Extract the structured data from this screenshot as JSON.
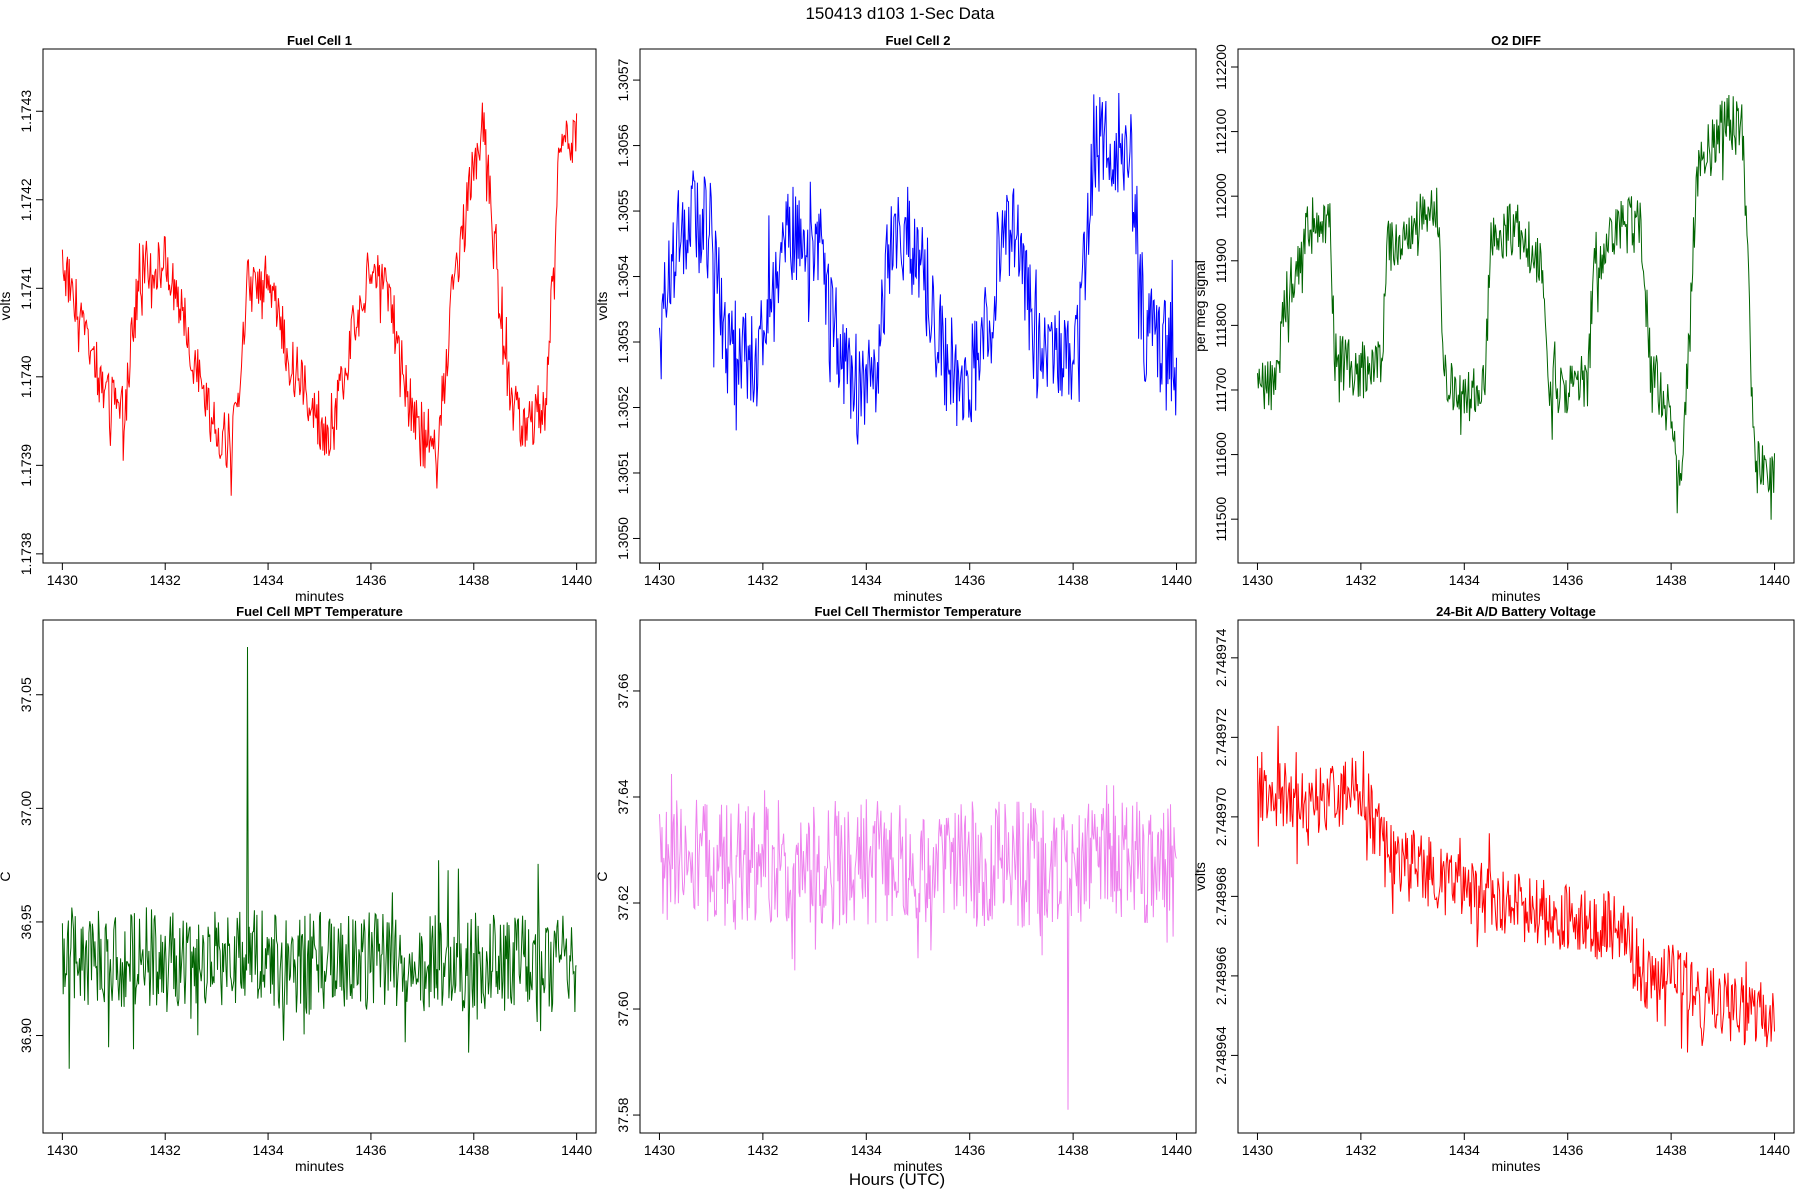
{
  "page": {
    "main_title": "150413   d103   1-Sec Data",
    "bottom_label": "Hours (UTC)"
  },
  "chart_data": [
    {
      "type": "line",
      "title": "Fuel Cell 1",
      "xlabel": "minutes",
      "ylabel": "volts",
      "color": "#ff0000",
      "xlim": [
        1430,
        1440
      ],
      "ylim": [
        1.17381,
        1.17435
      ],
      "x_ticks": [
        "1430",
        "1432",
        "1434",
        "1436",
        "1438",
        "1440"
      ],
      "y_ticks": [
        "1.1738",
        "1.1739",
        "1.1740",
        "1.1741",
        "1.1742",
        "1.1743"
      ],
      "x": [
        1430,
        1430.5,
        1430.8,
        1431.2,
        1431.5,
        1432.0,
        1432.3,
        1432.7,
        1433.0,
        1433.3,
        1433.6,
        1434.0,
        1434.4,
        1434.8,
        1435.2,
        1435.6,
        1436.0,
        1436.3,
        1436.7,
        1437.0,
        1437.3,
        1437.6,
        1437.9,
        1438.2,
        1438.4,
        1438.7,
        1439.0,
        1439.4,
        1439.7,
        1440
      ],
      "values": [
        1.17413,
        1.17405,
        1.17398,
        1.17396,
        1.17412,
        1.17413,
        1.17408,
        1.17398,
        1.17394,
        1.17392,
        1.1741,
        1.17412,
        1.17402,
        1.17398,
        1.17392,
        1.17404,
        1.17413,
        1.17411,
        1.17398,
        1.17394,
        1.17392,
        1.1741,
        1.1742,
        1.1743,
        1.17414,
        1.17397,
        1.17394,
        1.17397,
        1.17428,
        1.17427
      ],
      "amplitude": 3.2e-05
    },
    {
      "type": "line",
      "title": "Fuel Cell 2",
      "xlabel": "minutes",
      "ylabel": "volts",
      "color": "#0000ff",
      "xlim": [
        1430,
        1440
      ],
      "ylim": [
        1.30499,
        1.30572
      ],
      "x_ticks": [
        "1430",
        "1432",
        "1434",
        "1436",
        "1438",
        "1440"
      ],
      "y_ticks": [
        "1.3050",
        "1.3051",
        "1.3052",
        "1.3053",
        "1.3054",
        "1.3055",
        "1.3056",
        "1.3057"
      ],
      "x": [
        1430,
        1430.3,
        1430.6,
        1431.0,
        1431.3,
        1431.7,
        1432.0,
        1432.4,
        1432.8,
        1433.1,
        1433.5,
        1433.9,
        1434.2,
        1434.5,
        1434.8,
        1435.2,
        1435.5,
        1435.9,
        1436.2,
        1436.6,
        1436.9,
        1437.3,
        1437.7,
        1438.1,
        1438.4,
        1438.7,
        1439.1,
        1439.4,
        1439.7,
        1440
      ],
      "values": [
        1.3053,
        1.30545,
        1.30548,
        1.30547,
        1.3053,
        1.30528,
        1.30529,
        1.30545,
        1.30547,
        1.30546,
        1.30527,
        1.30524,
        1.30525,
        1.30548,
        1.30546,
        1.30538,
        1.30527,
        1.30524,
        1.30526,
        1.30546,
        1.30546,
        1.30529,
        1.30529,
        1.30528,
        1.3056,
        1.30561,
        1.30559,
        1.3053,
        1.3053,
        1.3053
      ],
      "amplitude": 8e-05
    },
    {
      "type": "line",
      "title": "O2 DIFF",
      "xlabel": "minutes",
      "ylabel": "per meg signal",
      "color": "#006400",
      "xlim": [
        1430,
        1440
      ],
      "ylim": [
        111460,
        112200
      ],
      "x_ticks": [
        "1430",
        "1432",
        "1434",
        "1436",
        "1438",
        "1440"
      ],
      "y_ticks": [
        "111500",
        "111600",
        "111700",
        "111800",
        "111900",
        "112000",
        "112100",
        "112200"
      ],
      "x": [
        1430,
        1430.3,
        1430.5,
        1431.0,
        1431.4,
        1431.5,
        1432.0,
        1432.4,
        1432.5,
        1433.0,
        1433.5,
        1433.6,
        1434.0,
        1434.4,
        1434.5,
        1435.0,
        1435.5,
        1435.6,
        1436.0,
        1436.4,
        1436.5,
        1437.0,
        1437.4,
        1437.6,
        1438.0,
        1438.2,
        1438.5,
        1439.0,
        1439.4,
        1439.6,
        1440
      ],
      "values": [
        111700,
        111700,
        111820,
        111960,
        111970,
        111750,
        111730,
        111740,
        111920,
        111960,
        111970,
        111720,
        111690,
        111700,
        111940,
        111950,
        111900,
        111720,
        111700,
        111720,
        111900,
        111950,
        111960,
        111740,
        111650,
        111540,
        112040,
        112120,
        112100,
        111580,
        111570
      ],
      "amplitude": 45
    },
    {
      "type": "line",
      "title": "Fuel Cell MPT Temperature",
      "xlabel": "minutes",
      "ylabel": "C",
      "color": "#006400",
      "xlim": [
        1430,
        1440
      ],
      "ylim": [
        36.865,
        37.075
      ],
      "x_ticks": [
        "1430",
        "1432",
        "1434",
        "1436",
        "1438",
        "1440"
      ],
      "y_ticks": [
        "36.90",
        "36.95",
        "37.00",
        "37.05"
      ],
      "x": [
        1430,
        1440
      ],
      "values": [
        36.935,
        36.932
      ],
      "amplitude": 0.022,
      "spike": {
        "x": 1433.6,
        "value": 37.071
      }
    },
    {
      "type": "line",
      "title": "Fuel Cell Thermistor Temperature",
      "xlabel": "minutes",
      "ylabel": "C",
      "color": "#ee82ee",
      "xlim": [
        1430,
        1440
      ],
      "ylim": [
        37.58,
        37.67
      ],
      "x_ticks": [
        "1430",
        "1432",
        "1434",
        "1436",
        "1438",
        "1440"
      ],
      "y_ticks": [
        "37.58",
        "37.60",
        "37.62",
        "37.64",
        "37.66"
      ],
      "x": [
        1430,
        1440
      ],
      "values": [
        37.628,
        37.627
      ],
      "amplitude": 0.012,
      "spike": {
        "x": 1437.9,
        "value": 37.581
      }
    },
    {
      "type": "line",
      "title": "24-Bit A/D Battery Voltage",
      "xlabel": "minutes",
      "ylabel": "volts",
      "color": "#ff0000",
      "xlim": [
        1430,
        1440
      ],
      "ylim": [
        2.7489625,
        2.7489745
      ],
      "x_ticks": [
        "1430",
        "1432",
        "1434",
        "1436",
        "1438",
        "1440"
      ],
      "y_ticks": [
        "2.748964",
        "2.748966",
        "2.748968",
        "2.748970",
        "2.748972",
        "2.748974"
      ],
      "x": [
        1430,
        1431.0,
        1432.0,
        1432.5,
        1433.0,
        1434.0,
        1435.0,
        1436.0,
        1437.0,
        1437.5,
        1438.0,
        1439.0,
        1440
      ],
      "values": [
        2.7489708,
        2.7489704,
        2.7489708,
        2.748969,
        2.7489688,
        2.7489682,
        2.7489677,
        2.7489674,
        2.7489672,
        2.748966,
        2.748966,
        2.7489652,
        2.748965
      ],
      "amplitude": 9e-07
    }
  ]
}
